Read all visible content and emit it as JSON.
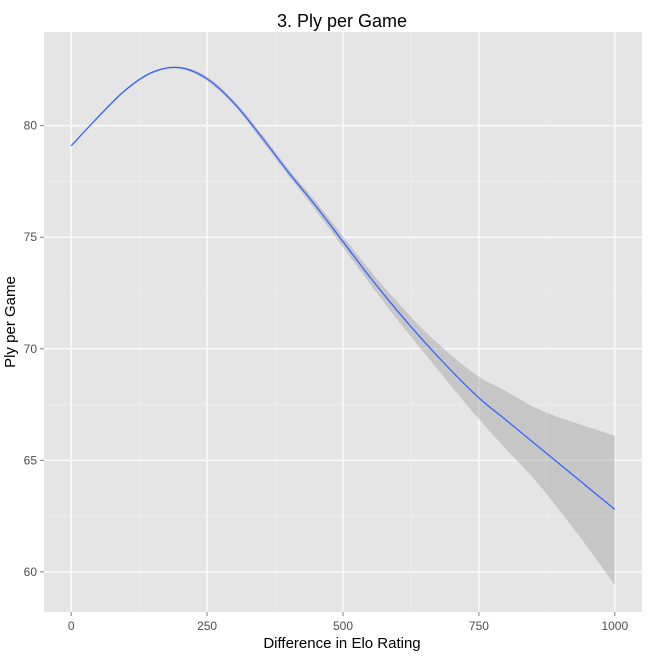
{
  "chart_data": {
    "type": "line",
    "title": "3. Ply per Game",
    "xlabel": "Difference in Elo Rating",
    "ylabel": "Ply per Game",
    "xlim": [
      -50,
      1050
    ],
    "ylim": [
      58.2,
      84.2
    ],
    "xticks": [
      0,
      250,
      500,
      750,
      1000
    ],
    "xtick_labels": [
      "0",
      "250",
      "500",
      "750",
      "1000"
    ],
    "yticks": [
      60,
      65,
      70,
      75,
      80
    ],
    "ytick_labels": [
      "60",
      "65",
      "70",
      "75",
      "80"
    ],
    "grid": true,
    "series": [
      {
        "color": "#3366FF",
        "x": [
          0,
          50,
          100,
          150,
          200,
          250,
          300,
          350,
          400,
          450,
          500,
          550,
          600,
          650,
          700,
          750,
          800,
          850,
          900,
          950,
          1000
        ],
        "y": [
          79.1,
          80.4,
          81.6,
          82.4,
          82.6,
          82.1,
          81.0,
          79.5,
          77.9,
          76.4,
          74.8,
          73.2,
          71.7,
          70.3,
          69.0,
          67.8,
          66.8,
          65.8,
          64.8,
          63.8,
          62.8
        ],
        "lower": [
          79.1,
          80.35,
          81.55,
          82.35,
          82.55,
          82.0,
          80.9,
          79.35,
          77.75,
          76.2,
          74.55,
          72.9,
          71.3,
          69.8,
          68.3,
          66.85,
          65.5,
          64.2,
          62.7,
          61.1,
          59.4
        ],
        "upper": [
          79.1,
          80.45,
          81.65,
          82.45,
          82.65,
          82.2,
          81.1,
          79.65,
          78.05,
          76.6,
          75.05,
          73.5,
          72.1,
          70.8,
          69.7,
          68.75,
          68.1,
          67.4,
          66.9,
          66.5,
          66.1
        ]
      }
    ]
  }
}
